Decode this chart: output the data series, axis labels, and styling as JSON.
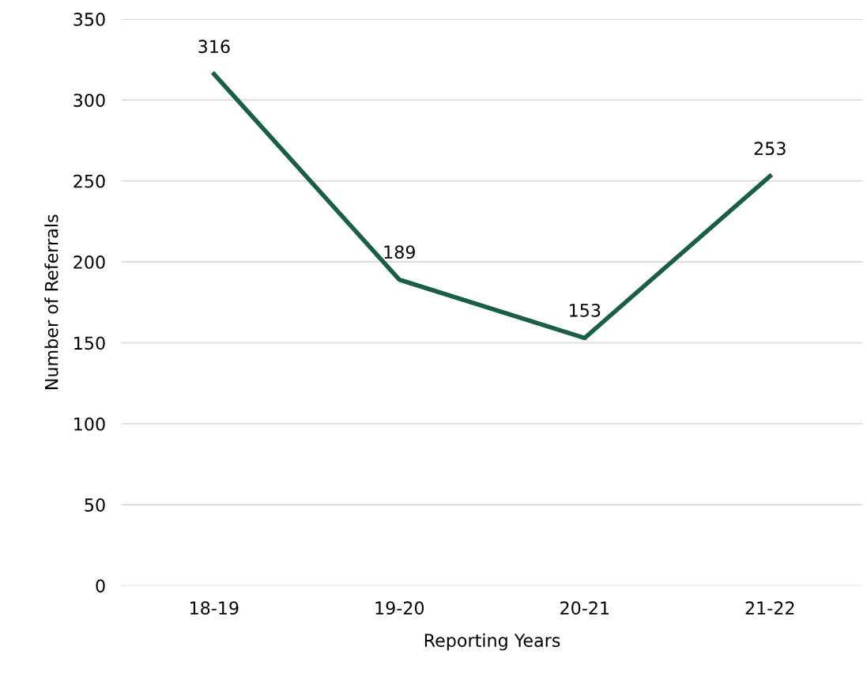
{
  "chart_data": {
    "type": "line",
    "xlabel": "Reporting Years",
    "ylabel": "Number of Referrals",
    "categories": [
      "18-19",
      "19-20",
      "20-21",
      "21-22"
    ],
    "series": [
      {
        "color": "#1b5e45",
        "values": [
          316,
          189,
          153,
          253
        ]
      }
    ],
    "ylim": [
      0,
      350
    ],
    "yticks": [
      0,
      50,
      100,
      150,
      200,
      250,
      300,
      350
    ],
    "grid": "y",
    "data_labels": true,
    "legend": false,
    "marker": "none",
    "line_style": "solid"
  }
}
